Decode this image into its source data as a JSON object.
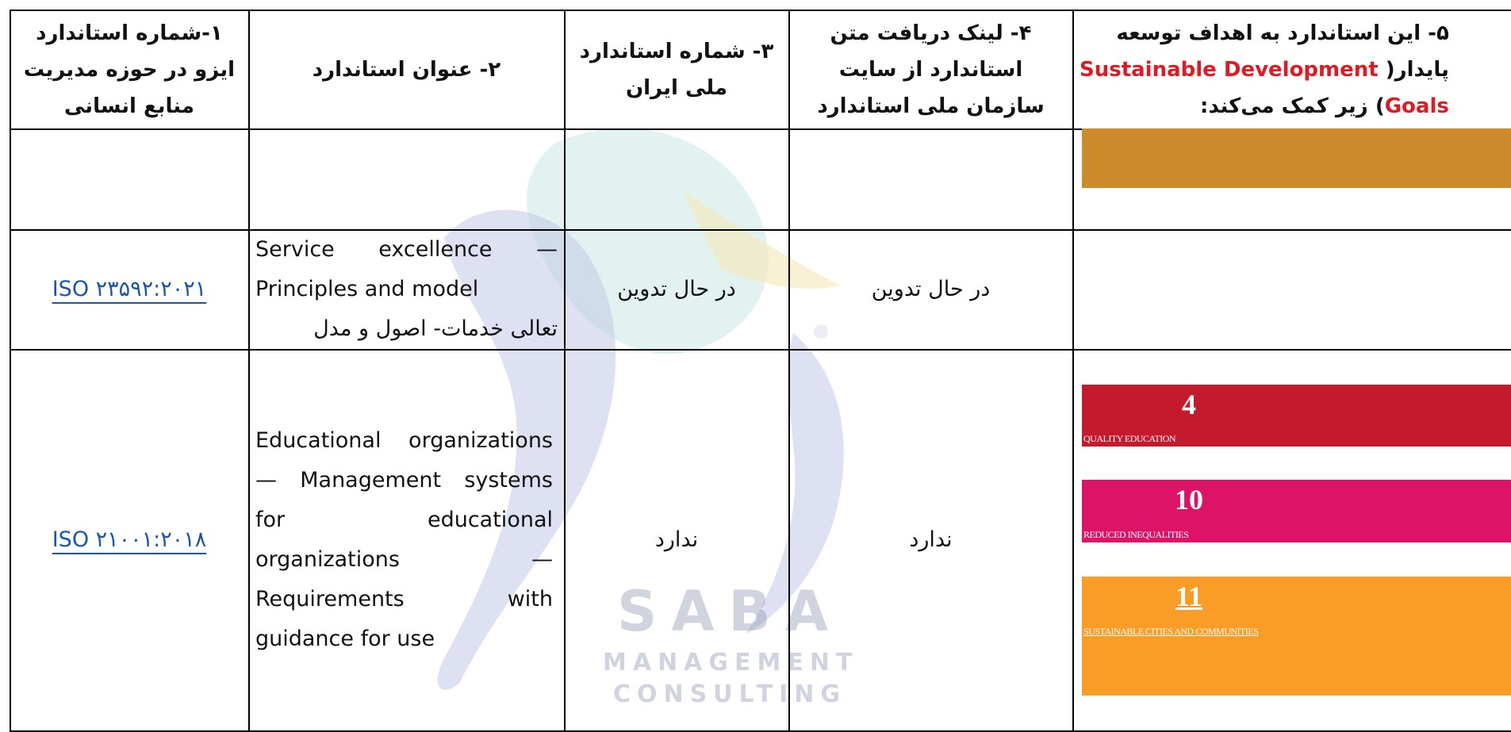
{
  "header": {
    "col1": [
      "۱-شماره استاندارد",
      "ایزو در حوزه مدیریت",
      "منابع انسانی"
    ],
    "col2": [
      "۲- عنوان استاندارد"
    ],
    "col3": [
      "۳- شماره استاندارد",
      "ملی ایران"
    ],
    "col4": [
      "۴- لینک دریافت متن",
      "استاندارد از سایت",
      "سازمان ملی استاندارد"
    ],
    "col5": {
      "line1": "۵- این استاندارد به اهداف توسعه",
      "line2_text": "پایدار(",
      "line2_highlight": "Sustainable Development",
      "line3_highlight": "Goals",
      "line3_text": ") زیر کمک می‌کند:"
    }
  },
  "rows": [
    {},
    {
      "iso": "ISO ۲۳۵۹۲:۲۰۲۱",
      "title_en": "Service excellence — Principles and model",
      "title_fa": "تعالی خدمات- اصول و مدل",
      "national": "در حال تدوین",
      "download": "در حال تدوین"
    },
    {
      "iso": "ISO ۲۱۰۰۱:۲۰۱۸",
      "title_en": "Educational organizations — Management systems for educational organizations — Requirements with guidance for use",
      "national": "ندارد",
      "download": "ندارد",
      "sdgs": [
        {
          "number": 4,
          "label": "QUALITY EDUCATION"
        },
        {
          "number": 10,
          "label": "REDUCED INEQUALITIES"
        },
        {
          "number": 11,
          "label": "SUSTAINABLE CITIES AND COMMUNITIES"
        }
      ]
    }
  ],
  "watermark": {
    "title": "SABA",
    "subtitle_line1": "MANAGEMENT",
    "subtitle_line2": "CONSULTING"
  }
}
